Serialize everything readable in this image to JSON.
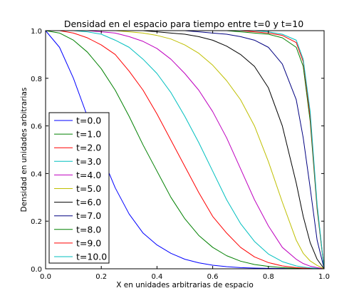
{
  "chart_data": {
    "type": "line",
    "title": "Densidad en el espacio para tiempo entre t=0 y t=10",
    "xlabel": "X en unidades arbitrarias de espacio",
    "ylabel": "Densidad en unidades arbitrarias",
    "xlim": [
      0.0,
      1.0
    ],
    "ylim": [
      0.0,
      1.0
    ],
    "xticks": [
      "0.0",
      "0.2",
      "0.4",
      "0.6",
      "0.8",
      "1.0"
    ],
    "yticks": [
      "0.0",
      "0.2",
      "0.4",
      "0.6",
      "0.8",
      "1.0"
    ],
    "grid": false,
    "legend_position": "lower-left",
    "x": [
      0.0,
      0.05,
      0.1,
      0.15,
      0.2,
      0.25,
      0.3,
      0.35,
      0.4,
      0.45,
      0.5,
      0.55,
      0.6,
      0.65,
      0.7,
      0.75,
      0.8,
      0.85,
      0.9,
      0.925,
      0.95,
      0.975,
      1.0
    ],
    "series": [
      {
        "name": "t=0.0",
        "color": "#0000ff",
        "values": [
          1.0,
          0.93,
          0.8,
          0.64,
          0.48,
          0.34,
          0.23,
          0.15,
          0.1,
          0.065,
          0.04,
          0.025,
          0.015,
          0.009,
          0.005,
          0.003,
          0.002,
          0.001,
          0.0005,
          0.0003,
          0.0002,
          0.0001,
          0.0
        ]
      },
      {
        "name": "t=1.0",
        "color": "#008000",
        "values": [
          1.0,
          0.99,
          0.96,
          0.91,
          0.84,
          0.75,
          0.64,
          0.52,
          0.41,
          0.3,
          0.21,
          0.14,
          0.09,
          0.055,
          0.032,
          0.018,
          0.01,
          0.005,
          0.002,
          0.001,
          0.0006,
          0.0003,
          0.0
        ]
      },
      {
        "name": "t=2.0",
        "color": "#ff0000",
        "values": [
          1.0,
          1.0,
          0.99,
          0.97,
          0.94,
          0.9,
          0.83,
          0.75,
          0.65,
          0.54,
          0.43,
          0.32,
          0.22,
          0.15,
          0.09,
          0.05,
          0.026,
          0.012,
          0.005,
          0.003,
          0.0015,
          0.0007,
          0.0
        ]
      },
      {
        "name": "t=3.0",
        "color": "#00bfbf",
        "values": [
          1.0,
          1.0,
          1.0,
          0.995,
          0.985,
          0.96,
          0.93,
          0.88,
          0.82,
          0.74,
          0.64,
          0.53,
          0.41,
          0.29,
          0.19,
          0.115,
          0.062,
          0.03,
          0.012,
          0.007,
          0.004,
          0.002,
          0.0
        ]
      },
      {
        "name": "t=4.0",
        "color": "#bf00bf",
        "values": [
          1.0,
          1.0,
          1.0,
          1.0,
          0.995,
          0.99,
          0.975,
          0.955,
          0.925,
          0.88,
          0.82,
          0.75,
          0.66,
          0.55,
          0.42,
          0.29,
          0.18,
          0.09,
          0.04,
          0.022,
          0.011,
          0.005,
          0.0
        ]
      },
      {
        "name": "t=5.0",
        "color": "#bfbf00",
        "values": [
          1.0,
          1.0,
          1.0,
          1.0,
          1.0,
          1.0,
          0.995,
          0.99,
          0.98,
          0.965,
          0.94,
          0.905,
          0.855,
          0.79,
          0.71,
          0.6,
          0.45,
          0.28,
          0.12,
          0.065,
          0.033,
          0.014,
          0.0
        ]
      },
      {
        "name": "t=6.0",
        "color": "#000000",
        "values": [
          1.0,
          1.0,
          1.0,
          1.0,
          1.0,
          1.0,
          1.0,
          1.0,
          0.995,
          0.99,
          0.985,
          0.975,
          0.96,
          0.935,
          0.9,
          0.85,
          0.76,
          0.6,
          0.36,
          0.22,
          0.11,
          0.04,
          0.0
        ]
      },
      {
        "name": "t=7.0",
        "color": "#000080",
        "values": [
          1.0,
          1.0,
          1.0,
          1.0,
          1.0,
          1.0,
          1.0,
          1.0,
          1.0,
          1.0,
          1.0,
          0.995,
          0.99,
          0.985,
          0.975,
          0.96,
          0.93,
          0.86,
          0.71,
          0.55,
          0.34,
          0.12,
          0.0
        ]
      },
      {
        "name": "t=8.0",
        "color": "#008000",
        "values": [
          1.0,
          1.0,
          1.0,
          1.0,
          1.0,
          1.0,
          1.0,
          1.0,
          1.0,
          1.0,
          1.0,
          1.0,
          1.0,
          1.0,
          0.995,
          0.99,
          0.985,
          0.97,
          0.93,
          0.85,
          0.62,
          0.25,
          0.0
        ]
      },
      {
        "name": "t=9.0",
        "color": "#ff0000",
        "values": [
          1.0,
          1.0,
          1.0,
          1.0,
          1.0,
          1.0,
          1.0,
          1.0,
          1.0,
          1.0,
          1.0,
          1.0,
          1.0,
          1.0,
          1.0,
          0.995,
          0.99,
          0.98,
          0.95,
          0.87,
          0.64,
          0.26,
          0.0
        ]
      },
      {
        "name": "t=10.0",
        "color": "#00bfbf",
        "values": [
          1.0,
          1.0,
          1.0,
          1.0,
          1.0,
          1.0,
          1.0,
          1.0,
          1.0,
          1.0,
          1.0,
          1.0,
          1.0,
          1.0,
          1.0,
          1.0,
          0.995,
          0.985,
          0.96,
          0.88,
          0.66,
          0.27,
          0.0
        ]
      }
    ]
  }
}
